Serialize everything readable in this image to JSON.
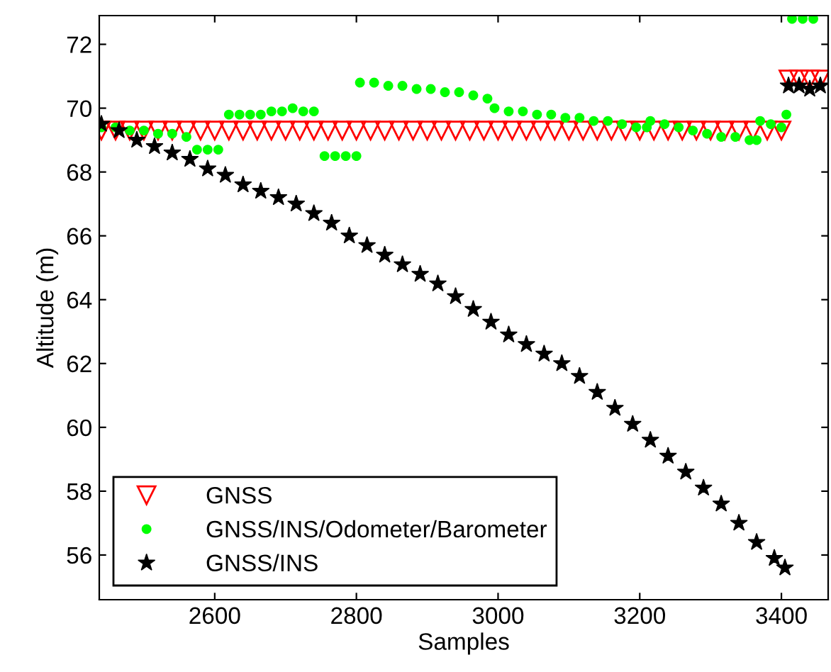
{
  "chart_data": {
    "type": "scatter",
    "xlabel": "Samples",
    "ylabel": "Altitude (m)",
    "xlim": [
      2437,
      3466
    ],
    "ylim": [
      54.6,
      72.9
    ],
    "xticks": [
      2600,
      2800,
      3000,
      3200,
      3400
    ],
    "yticks": [
      56,
      58,
      60,
      62,
      64,
      66,
      68,
      70,
      72
    ],
    "legend": "bottom left",
    "grid": false,
    "series": [
      {
        "name": "GNSS",
        "color": "#ff0000",
        "marker": "triangle",
        "x": [
          2440,
          2460,
          2480,
          2500,
          2520,
          2540,
          2560,
          2580,
          2600,
          2620,
          2640,
          2660,
          2680,
          2700,
          2720,
          2740,
          2760,
          2780,
          2800,
          2820,
          2840,
          2860,
          2880,
          2900,
          2920,
          2940,
          2960,
          2980,
          3000,
          3020,
          3040,
          3060,
          3080,
          3100,
          3120,
          3140,
          3160,
          3180,
          3200,
          3220,
          3240,
          3260,
          3280,
          3300,
          3320,
          3340,
          3360,
          3380,
          3400,
          3410,
          3425,
          3440,
          3455
        ],
        "values": [
          69.3,
          69.3,
          69.3,
          69.3,
          69.3,
          69.3,
          69.3,
          69.3,
          69.3,
          69.3,
          69.3,
          69.3,
          69.3,
          69.3,
          69.3,
          69.3,
          69.3,
          69.3,
          69.3,
          69.3,
          69.3,
          69.3,
          69.3,
          69.3,
          69.3,
          69.3,
          69.3,
          69.3,
          69.3,
          69.3,
          69.3,
          69.3,
          69.3,
          69.3,
          69.3,
          69.3,
          69.3,
          69.3,
          69.3,
          69.3,
          69.3,
          69.3,
          69.3,
          69.3,
          69.3,
          69.3,
          69.3,
          69.3,
          69.3,
          70.9,
          70.9,
          70.9,
          70.9
        ]
      },
      {
        "name": "GNSS/INS/Odometer/Barometer",
        "color": "#00ff00",
        "marker": "circle",
        "x": [
          2440,
          2460,
          2480,
          2500,
          2520,
          2540,
          2560,
          2575,
          2590,
          2605,
          2620,
          2635,
          2650,
          2665,
          2680,
          2695,
          2710,
          2725,
          2740,
          2755,
          2770,
          2785,
          2800,
          2805,
          2825,
          2845,
          2865,
          2885,
          2905,
          2925,
          2945,
          2965,
          2985,
          2995,
          3015,
          3035,
          3055,
          3075,
          3095,
          3115,
          3135,
          3155,
          3175,
          3195,
          3210,
          3215,
          3235,
          3255,
          3275,
          3295,
          3315,
          3335,
          3355,
          3365,
          3370,
          3385,
          3400,
          3407,
          3415,
          3430,
          3445
        ],
        "values": [
          69.4,
          69.4,
          69.3,
          69.3,
          69.2,
          69.2,
          69.1,
          68.7,
          68.7,
          68.7,
          69.8,
          69.8,
          69.8,
          69.8,
          69.9,
          69.9,
          70.0,
          69.9,
          69.9,
          68.5,
          68.5,
          68.5,
          68.5,
          70.8,
          70.8,
          70.7,
          70.7,
          70.6,
          70.6,
          70.5,
          70.5,
          70.4,
          70.3,
          70.0,
          69.9,
          69.9,
          69.8,
          69.8,
          69.7,
          69.7,
          69.6,
          69.6,
          69.5,
          69.4,
          69.4,
          69.6,
          69.5,
          69.4,
          69.3,
          69.2,
          69.1,
          69.1,
          69.0,
          69.0,
          69.6,
          69.5,
          69.4,
          69.8,
          72.8,
          72.8,
          72.8
        ]
      },
      {
        "name": "GNSS/INS",
        "color": "#000000",
        "marker": "star",
        "x": [
          2440,
          2465,
          2490,
          2515,
          2540,
          2565,
          2590,
          2615,
          2640,
          2665,
          2690,
          2715,
          2740,
          2765,
          2790,
          2815,
          2840,
          2865,
          2890,
          2915,
          2940,
          2965,
          2990,
          3015,
          3040,
          3065,
          3090,
          3115,
          3140,
          3165,
          3190,
          3215,
          3240,
          3265,
          3290,
          3315,
          3340,
          3365,
          3390,
          3405,
          3410,
          3425,
          3440,
          3455
        ],
        "values": [
          69.5,
          69.3,
          69.0,
          68.8,
          68.6,
          68.4,
          68.1,
          67.9,
          67.6,
          67.4,
          67.2,
          67.0,
          66.7,
          66.4,
          66.0,
          65.7,
          65.4,
          65.1,
          64.8,
          64.5,
          64.1,
          63.7,
          63.3,
          62.9,
          62.6,
          62.3,
          62.0,
          61.6,
          61.1,
          60.6,
          60.1,
          59.6,
          59.1,
          58.6,
          58.1,
          57.6,
          57.0,
          56.4,
          55.9,
          55.6,
          70.7,
          70.7,
          70.6,
          70.7
        ]
      }
    ]
  }
}
